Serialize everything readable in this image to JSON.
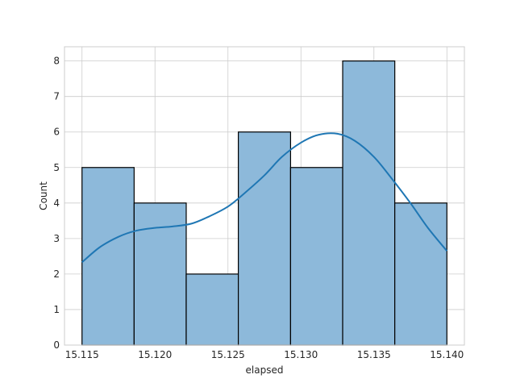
{
  "chart_data": {
    "type": "bar",
    "subtype": "histogram-with-kde",
    "title": "",
    "xlabel": "elapsed",
    "ylabel": "Count",
    "xlim": [
      15.1138,
      15.1412
    ],
    "ylim": [
      0,
      8.4
    ],
    "x_ticks": [
      15.115,
      15.12,
      15.125,
      15.13,
      15.135,
      15.14
    ],
    "x_tick_labels": [
      "15.115",
      "15.120",
      "15.125",
      "15.130",
      "15.135",
      "15.140"
    ],
    "y_ticks": [
      0,
      1,
      2,
      3,
      4,
      5,
      6,
      7,
      8
    ],
    "y_tick_labels": [
      "0",
      "1",
      "2",
      "3",
      "4",
      "5",
      "6",
      "7",
      "8"
    ],
    "bins": [
      {
        "x0": 15.115,
        "x1": 15.11857,
        "count": 5
      },
      {
        "x0": 15.11857,
        "x1": 15.12214,
        "count": 4
      },
      {
        "x0": 15.12214,
        "x1": 15.12571,
        "count": 2
      },
      {
        "x0": 15.12571,
        "x1": 15.12929,
        "count": 6
      },
      {
        "x0": 15.12929,
        "x1": 15.13286,
        "count": 5
      },
      {
        "x0": 15.13286,
        "x1": 15.13643,
        "count": 8
      },
      {
        "x0": 15.13643,
        "x1": 15.14,
        "count": 4
      }
    ],
    "kde": {
      "x": [
        15.115,
        15.1162,
        15.1175,
        15.1187,
        15.12,
        15.1212,
        15.1225,
        15.1237,
        15.125,
        15.1262,
        15.1275,
        15.1287,
        15.13,
        15.1312,
        15.1325,
        15.1337,
        15.135,
        15.1362,
        15.1375,
        15.1387,
        15.14
      ],
      "y": [
        2.33,
        2.75,
        3.05,
        3.22,
        3.3,
        3.34,
        3.42,
        3.62,
        3.9,
        4.3,
        4.78,
        5.3,
        5.7,
        5.92,
        5.95,
        5.75,
        5.3,
        4.7,
        4.0,
        3.3,
        2.65
      ]
    },
    "grid": true,
    "colors": {
      "bar_fill": "#8db9da",
      "bar_edge": "#000000",
      "kde_line": "#1f77b4",
      "grid": "#cccccc",
      "spine": "#cccccc"
    }
  }
}
